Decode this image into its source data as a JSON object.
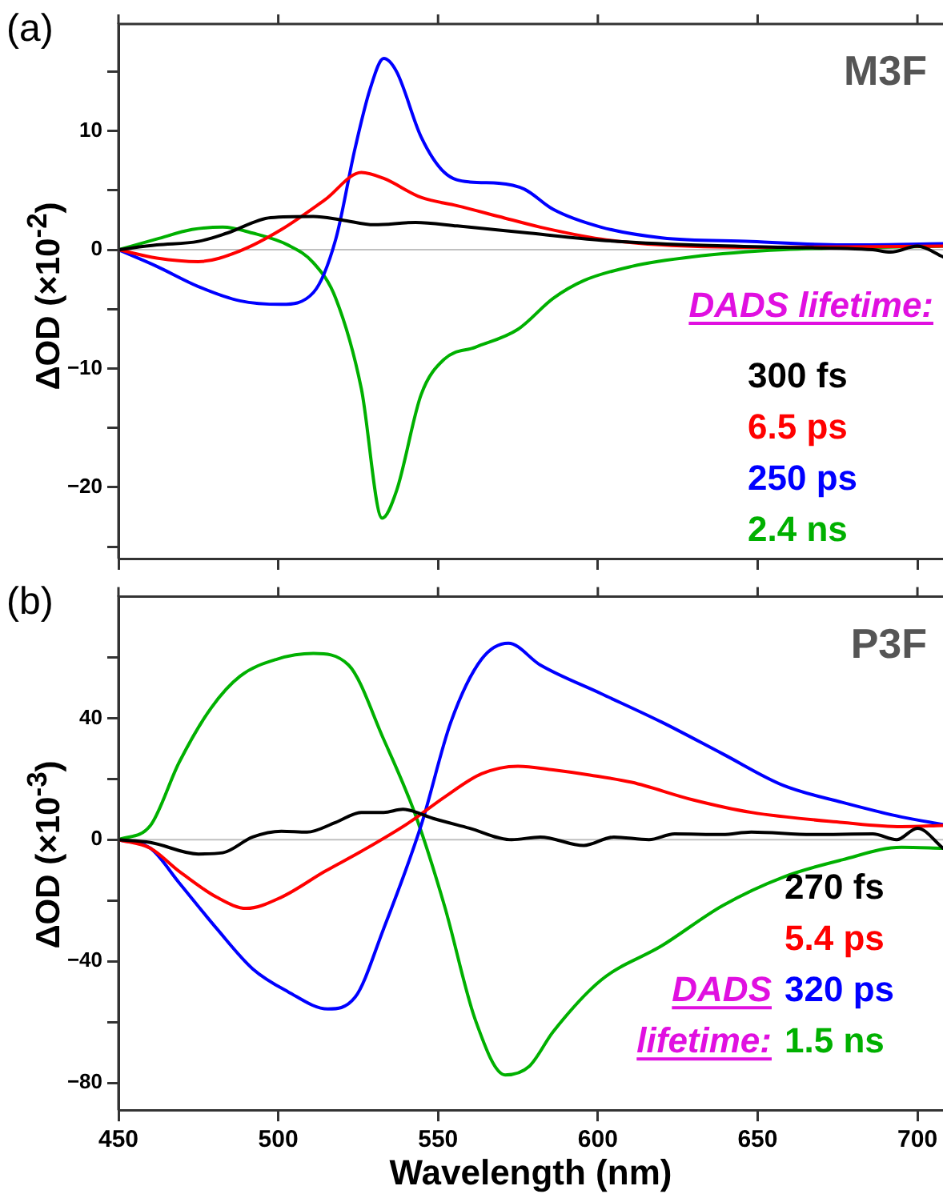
{
  "chart_data": [
    {
      "type": "line",
      "annotations": [
        "(a)",
        "M3F"
      ],
      "ylabel": "ΔOD (×10$^{-2}$)",
      "legend_title": "DADS lifetime:",
      "legend": "right",
      "tick_labels": "y",
      "grid": false,
      "marker": "none",
      "line_style": "solid",
      "xlim": [
        450,
        708
      ],
      "xticks": [
        450,
        500,
        550,
        600,
        650,
        700
      ],
      "ylim": [
        -26,
        19
      ],
      "yticks": [
        {
          "value": -25,
          "label": null
        },
        -20,
        {
          "value": -15,
          "label": null
        },
        -10,
        {
          "value": -5,
          "label": null
        },
        0,
        {
          "value": 5,
          "label": null
        },
        10,
        {
          "value": 15,
          "label": null
        }
      ],
      "ref_lines": [
        {
          "axis": "y",
          "value": 0,
          "color": "#c0c0c0"
        }
      ],
      "series": [
        {
          "name": "300 fs",
          "color": "#000000",
          "x": [
            450,
            462,
            475,
            484,
            497.6,
            511,
            520,
            530,
            543,
            556,
            578.6,
            601,
            629,
            658,
            686,
            691.6,
            700,
            708
          ],
          "values": [
            0,
            0.4,
            0.7,
            1.4,
            2.7,
            2.8,
            2.5,
            2.1,
            2.3,
            2.0,
            1.4,
            0.8,
            0.4,
            0.2,
            0,
            -0.2,
            0.3,
            -0.6
          ]
        },
        {
          "name": "6.5 ps",
          "color": "#ff0000",
          "x": [
            450,
            462,
            475,
            488,
            501,
            514.6,
            526,
            533,
            544.7,
            556,
            569,
            582,
            601,
            620,
            648,
            708
          ],
          "values": [
            0,
            -0.7,
            -1.0,
            -0.1,
            1.7,
            4.2,
            6.5,
            6.0,
            4.4,
            3.7,
            2.8,
            1.9,
            0.9,
            0.4,
            0.2,
            0.3
          ]
        },
        {
          "name": "250 ps",
          "color": "#0000ff",
          "x": [
            450,
            462,
            475,
            488,
            501,
            511,
            518,
            524,
            528.7,
            533,
            537,
            544.7,
            552,
            560,
            569,
            577,
            586,
            601,
            620,
            648,
            676.5,
            708
          ],
          "values": [
            0,
            -1.4,
            -3.1,
            -4.3,
            -4.6,
            -3.6,
            0.9,
            8.5,
            13.5,
            16.1,
            15,
            9.5,
            6.5,
            5.7,
            5.6,
            5.1,
            3.4,
            1.9,
            1.0,
            0.7,
            0.4,
            0.5
          ]
        },
        {
          "name": "2.4 ns",
          "color": "#00b000",
          "x": [
            450,
            462,
            473,
            482.6,
            492,
            503,
            511,
            518,
            526,
            532.5,
            537,
            544.7,
            552,
            561.7,
            575,
            586,
            595.6,
            610.6,
            629.5,
            658,
            708
          ],
          "values": [
            0,
            0.9,
            1.7,
            1.9,
            1.4,
            0.4,
            -1.1,
            -4.1,
            -11.7,
            -22.6,
            -20.3,
            -12.2,
            -9.2,
            -8.2,
            -6.7,
            -4.1,
            -2.6,
            -1.4,
            -0.6,
            0,
            0.3
          ]
        }
      ]
    },
    {
      "type": "line",
      "annotations": [
        "(b)",
        "P3F"
      ],
      "xlabel": "Wavelength (nm)",
      "ylabel": "ΔOD (×10$^{-3}$)",
      "legend_title": "DADS lifetime:",
      "legend": "bottom right",
      "grid": false,
      "marker": "none",
      "line_style": "solid",
      "xlim": [
        450,
        708
      ],
      "xticks": [
        450,
        500,
        550,
        600,
        650,
        700
      ],
      "ylim": [
        -89,
        80
      ],
      "yticks": [
        -80,
        {
          "value": -60,
          "label": null
        },
        -40,
        {
          "value": -20,
          "label": null
        },
        0,
        {
          "value": 20,
          "label": null
        },
        40,
        {
          "value": 60,
          "label": null
        }
      ],
      "ref_lines": [
        {
          "axis": "y",
          "value": 0,
          "color": "#c0c0c0"
        }
      ],
      "series": [
        {
          "name": "270 fs",
          "color": "#000000",
          "x": [
            450,
            460,
            475,
            482.6,
            492,
            501,
            509,
            518,
            526,
            533,
            539,
            548.5,
            559.8,
            573,
            582,
            595.6,
            605,
            616,
            624,
            639,
            648,
            667,
            686,
            693.5,
            700,
            708
          ],
          "values": [
            0,
            -0.9,
            -4.7,
            -4.3,
            0.9,
            2.8,
            2.5,
            5.7,
            9,
            9,
            10,
            7,
            3.8,
            0,
            0.9,
            -1.9,
            0.9,
            0,
            1.9,
            1.7,
            2.5,
            1.7,
            1.9,
            0,
            3.8,
            -2.8
          ]
        },
        {
          "name": "5.4 ps",
          "color": "#ff0000",
          "x": [
            450,
            460,
            469,
            480.7,
            490,
            501,
            514.6,
            526,
            541,
            552,
            563.6,
            575,
            586,
            597.5,
            610.6,
            629.5,
            648,
            676.5,
            695,
            708
          ],
          "values": [
            0,
            -2.8,
            -10.4,
            -18.9,
            -22.6,
            -18.9,
            -10.4,
            -3.8,
            5.7,
            14,
            21.7,
            24.2,
            23,
            21.3,
            18.9,
            13.2,
            9,
            5.7,
            4.3,
            4.7
          ]
        },
        {
          "name": "320 ps",
          "color": "#0000ff",
          "x": [
            450,
            460,
            469,
            480.7,
            492,
            503,
            515.5,
            524,
            533,
            544.7,
            554,
            563.6,
            572,
            582,
            601,
            620,
            639,
            658,
            676.5,
            695,
            708
          ],
          "values": [
            0,
            -2.8,
            -14.2,
            -29.2,
            -42.5,
            -50,
            -55.7,
            -51.9,
            -29.2,
            4.7,
            38.7,
            59.4,
            64.7,
            57.5,
            48.1,
            38.7,
            28.3,
            17.9,
            12.3,
            7.5,
            5
          ]
        },
        {
          "name": "1.5 ns",
          "color": "#00b000",
          "x": [
            450,
            460,
            469,
            479,
            488,
            499.5,
            511,
            522,
            533,
            542.8,
            552,
            561.7,
            571,
            578.6,
            586,
            601,
            620,
            639,
            658,
            676.5,
            695,
            708
          ],
          "values": [
            0,
            4.7,
            25.5,
            43.4,
            53.8,
            59.4,
            61.3,
            57.5,
            33,
            8.5,
            -21.7,
            -59.4,
            -77.4,
            -74.5,
            -63.2,
            -46.2,
            -34.9,
            -21.7,
            -12.3,
            -6.6,
            -2.5,
            -2.8
          ]
        }
      ]
    }
  ]
}
